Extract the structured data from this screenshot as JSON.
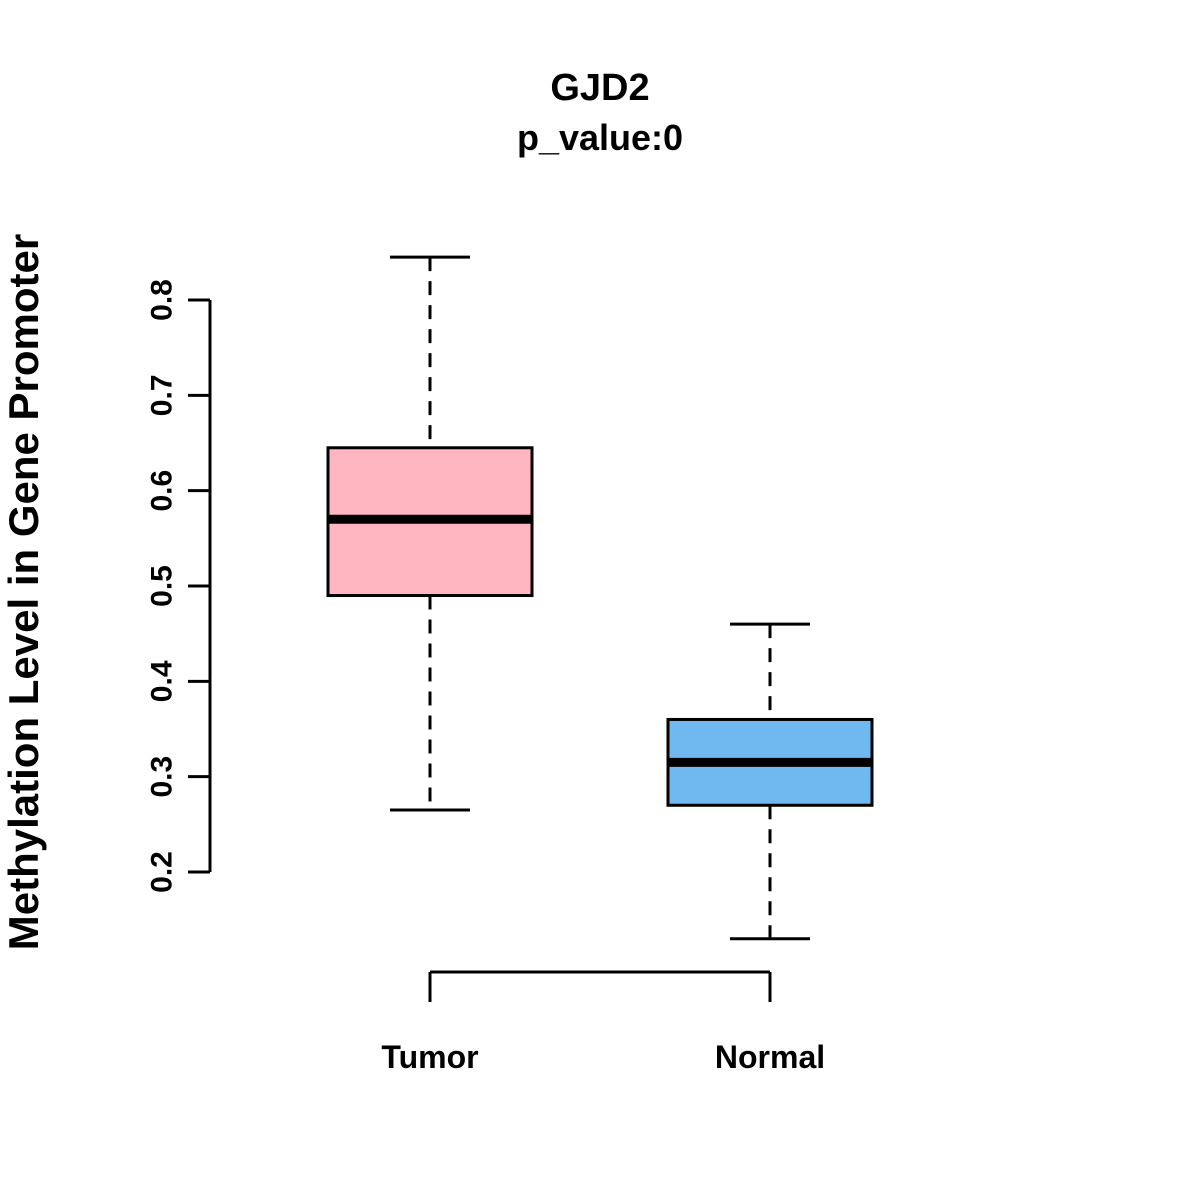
{
  "chart_data": {
    "type": "boxplot",
    "title": "GJD2",
    "subtitle": "p_value:0",
    "ylabel": "Methylation Level in Gene Promoter",
    "xlabel": "",
    "categories": [
      "Tumor",
      "Normal"
    ],
    "yticks": [
      0.2,
      0.3,
      0.4,
      0.5,
      0.6,
      0.7,
      0.8
    ],
    "yaxis_range": [
      0.2,
      0.8
    ],
    "grid": "off",
    "legend": "none",
    "colors": {
      "tumor_box": "#FFB6C1",
      "normal_box": "#70B8F0",
      "line": "#000000",
      "background": "#FFFFFF"
    },
    "series": [
      {
        "name": "Tumor",
        "color": "#FFB6C1",
        "lower_whisker": 0.265,
        "q1": 0.49,
        "median": 0.57,
        "q3": 0.645,
        "upper_whisker": 0.845
      },
      {
        "name": "Normal",
        "color": "#70B8F0",
        "lower_whisker": 0.13,
        "q1": 0.27,
        "median": 0.315,
        "q3": 0.36,
        "upper_whisker": 0.46
      }
    ]
  }
}
